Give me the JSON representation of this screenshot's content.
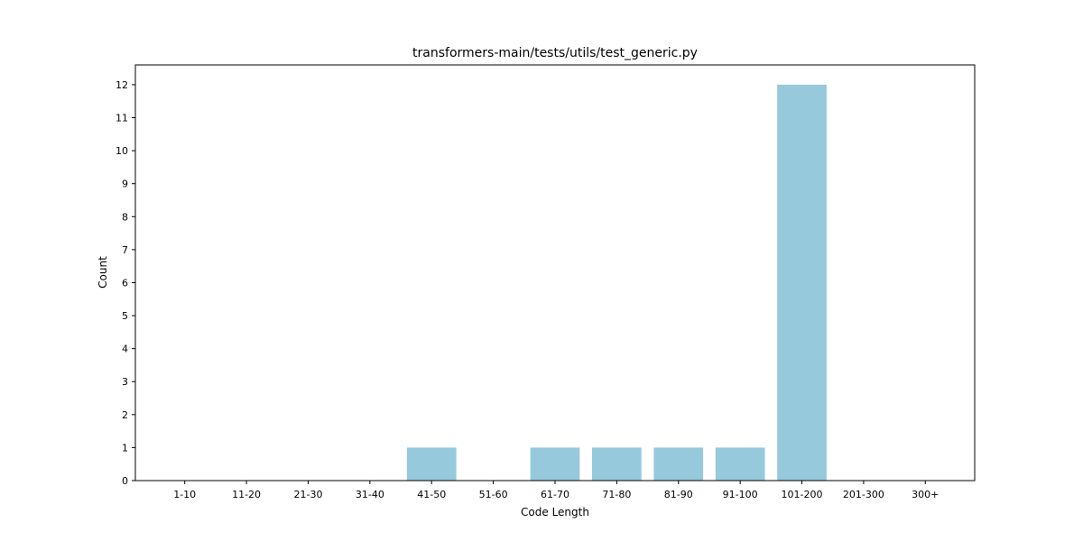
{
  "chart_data": {
    "type": "bar",
    "title": "transformers-main/tests/utils/test_generic.py",
    "xlabel": "Code Length",
    "ylabel": "Count",
    "categories": [
      "1-10",
      "11-20",
      "21-30",
      "31-40",
      "41-50",
      "51-60",
      "61-70",
      "71-80",
      "81-90",
      "91-100",
      "101-200",
      "201-300",
      "300+"
    ],
    "values": [
      0,
      0,
      0,
      0,
      1,
      0,
      1,
      1,
      1,
      1,
      12,
      0,
      0
    ],
    "ylim": [
      0,
      12.6
    ],
    "yticks": [
      0,
      1,
      2,
      3,
      4,
      5,
      6,
      7,
      8,
      9,
      10,
      11,
      12
    ],
    "grid": false,
    "bar_color": "#96c9dc"
  }
}
